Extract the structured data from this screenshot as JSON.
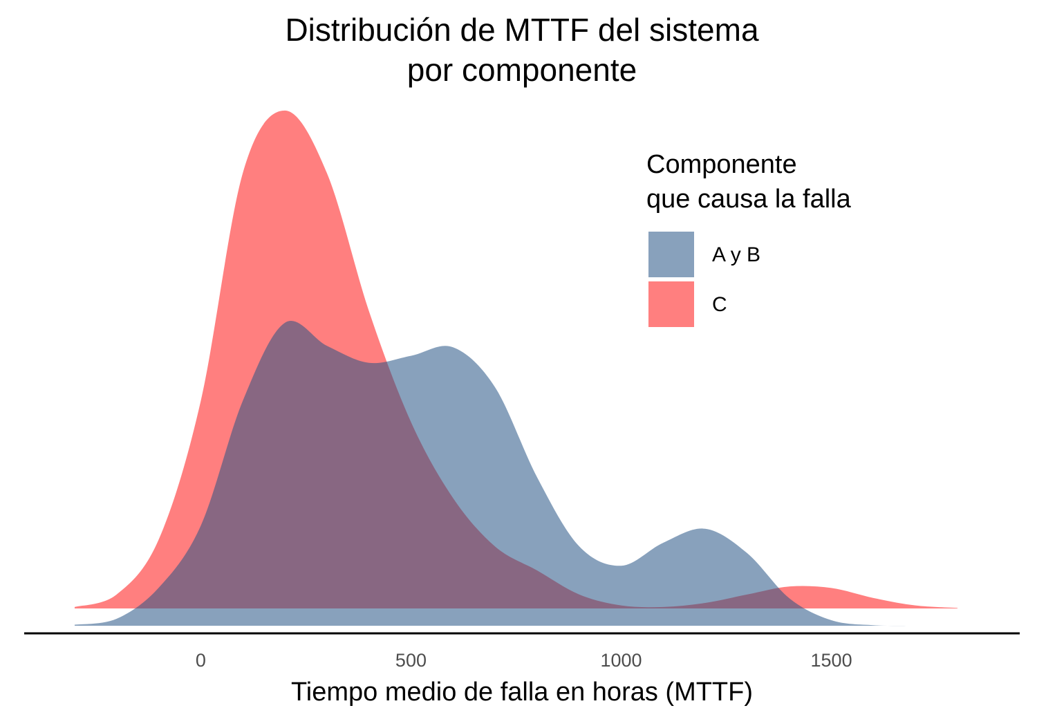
{
  "chart_data": {
    "type": "density",
    "title": [
      "Distribución de MTTF del sistema",
      "por componente"
    ],
    "x_label": "Tiempo medio de falla en horas (MTTF)",
    "legend_title": [
      "Componente",
      "que causa la falla"
    ],
    "legend": "top-right",
    "x": [
      -300,
      -200,
      -100,
      0,
      100,
      200,
      300,
      400,
      500,
      600,
      700,
      800,
      900,
      1000,
      1100,
      1200,
      1300,
      1400,
      1500,
      1600,
      1700,
      1800
    ],
    "series": [
      {
        "name": "A y B",
        "color": "#265485",
        "alpha": 0.55,
        "values": [
          0.002,
          0.014,
          0.076,
          0.2,
          0.45,
          0.606,
          0.56,
          0.526,
          0.54,
          0.557,
          0.477,
          0.297,
          0.159,
          0.12,
          0.166,
          0.194,
          0.145,
          0.055,
          0.011,
          0.001,
          0,
          null
        ]
      },
      {
        "name": "C",
        "color": "#ff0000",
        "alpha": 0.5,
        "values": [
          0.003,
          0.028,
          0.138,
          0.415,
          0.871,
          0.996,
          0.871,
          0.595,
          0.373,
          0.221,
          0.124,
          0.076,
          0.028,
          0.006,
          0.003,
          0.011,
          0.028,
          0.044,
          0.041,
          0.021,
          0.006,
          0.001
        ]
      }
    ],
    "xlim": [
      -420,
      1948
    ],
    "xticks": [
      0,
      500,
      1000,
      1500
    ],
    "ylim": [
      0,
      1
    ]
  }
}
